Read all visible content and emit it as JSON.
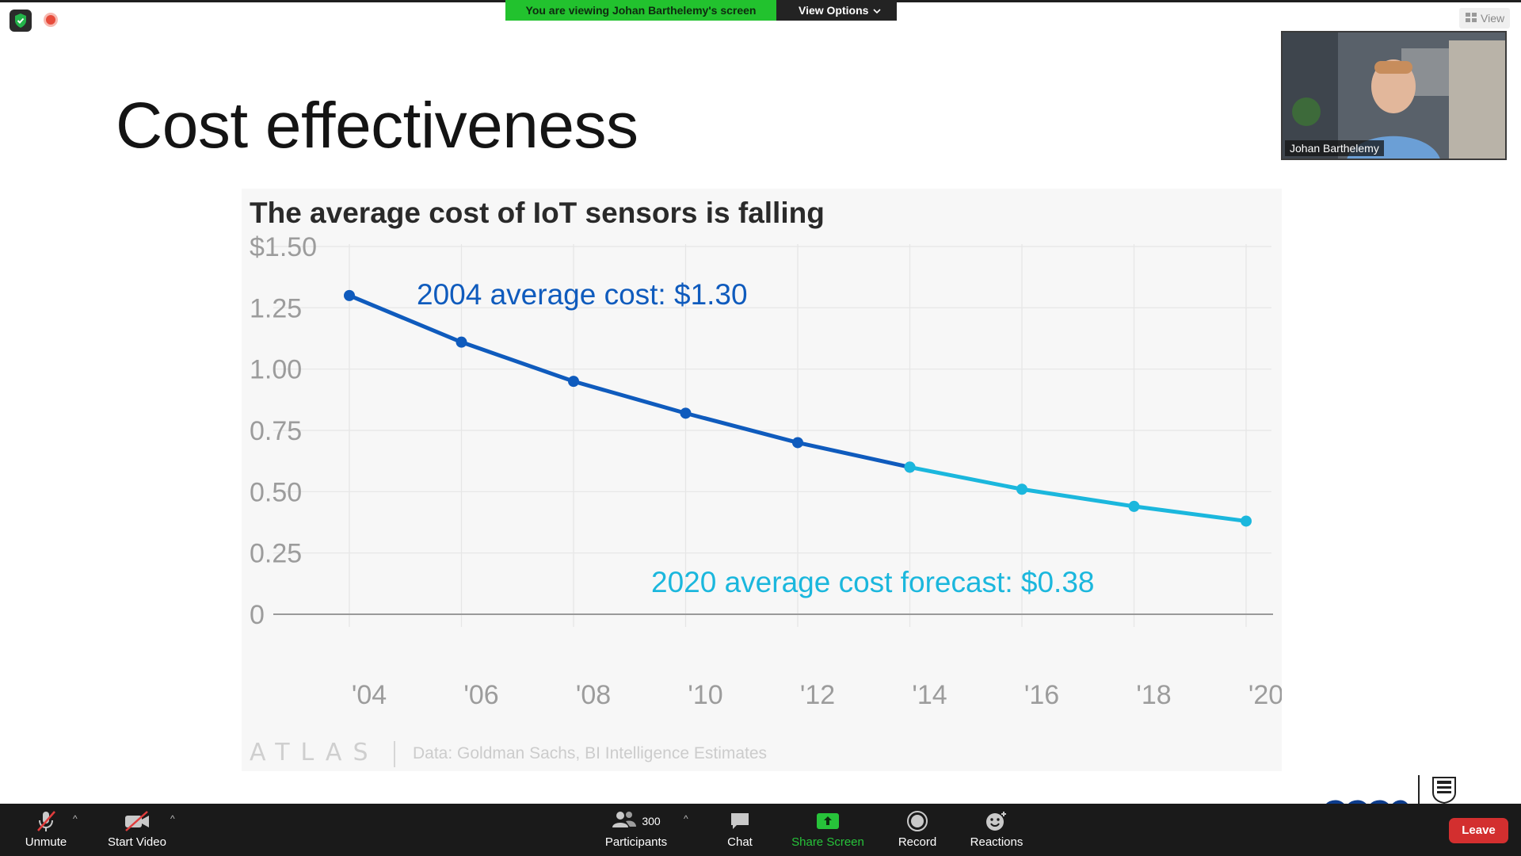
{
  "top_bar": {
    "viewing_banner": "You are viewing Johan Barthelemy's screen",
    "view_options_label": "View Options",
    "view_button_label": "View"
  },
  "slide": {
    "title": "Cost effectiveness",
    "source_logo": "ATLAS",
    "source_text": "Data: Goldman Sachs, BI Intelligence Estimates"
  },
  "video_thumbnail": {
    "participant_name": "Johan Barthelemy"
  },
  "chart_data": {
    "type": "line",
    "title": "The average cost of IoT sensors is falling",
    "xlabel": "",
    "ylabel": "",
    "x": [
      2004,
      2006,
      2008,
      2010,
      2012,
      2014,
      2016,
      2018,
      2020
    ],
    "x_tick_labels": [
      "'04",
      "'06",
      "'08",
      "'10",
      "'12",
      "'14",
      "'16",
      "'18",
      "'20"
    ],
    "y_ticks": [
      0,
      0.25,
      0.5,
      0.75,
      1.0,
      1.25,
      1.5
    ],
    "y_tick_labels": [
      "0",
      "0.25",
      "0.50",
      "0.75",
      "1.00",
      "1.25",
      "$1.50"
    ],
    "ylim": [
      0,
      1.5
    ],
    "grid": true,
    "series": [
      {
        "color": "#0f5bbd",
        "x": [
          2004,
          2006,
          2008,
          2010,
          2012,
          2014
        ],
        "values": [
          1.3,
          1.11,
          0.95,
          0.82,
          0.7,
          0.6
        ]
      },
      {
        "color": "#1bb7dd",
        "x": [
          2014,
          2016,
          2018,
          2020
        ],
        "values": [
          0.6,
          0.51,
          0.44,
          0.38
        ]
      }
    ],
    "annotations": [
      {
        "text": "2004 average cost: $1.30",
        "color": "#0f5bbd"
      },
      {
        "text": "2020 average cost forecast: $0.38",
        "color": "#1bb7dd"
      }
    ]
  },
  "toolbar": {
    "unmute_label": "Unmute",
    "start_video_label": "Start Video",
    "participants_label": "Participants",
    "participants_count": "300",
    "chat_label": "Chat",
    "share_screen_label": "Share Screen",
    "record_label": "Record",
    "reactions_label": "Reactions",
    "leave_label": "Leave"
  },
  "colors": {
    "banner_green": "#22c22e",
    "share_green": "#27c33a",
    "leave_red": "#d32f2f",
    "toolbar_bg": "#1a1a1a"
  }
}
